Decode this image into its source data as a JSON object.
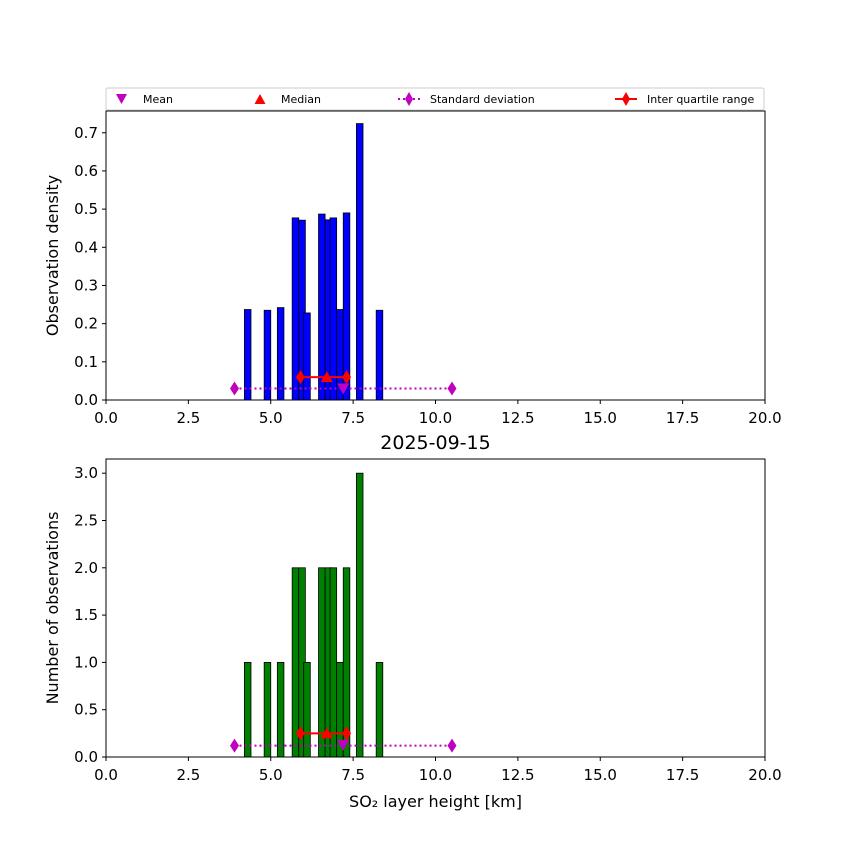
{
  "legend": {
    "mean": "Mean",
    "median": "Median",
    "std": "Standard deviation",
    "iqr": "Inter quartile range"
  },
  "chart_data": [
    {
      "type": "bar",
      "xlabel": "",
      "ylabel": "Observation density",
      "xlim": [
        0,
        20
      ],
      "ylim": [
        0,
        0.757
      ],
      "xticks": [
        "0.0",
        "2.5",
        "5.0",
        "7.5",
        "10.0",
        "12.5",
        "15.0",
        "17.5",
        "20.0"
      ],
      "yticks": [
        "0.0",
        "0.1",
        "0.2",
        "0.3",
        "0.4",
        "0.5",
        "0.6",
        "0.7"
      ],
      "bar_color": "#0000ff",
      "bars": [
        {
          "x": 4.3,
          "y": 0.237
        },
        {
          "x": 4.9,
          "y": 0.235
        },
        {
          "x": 5.3,
          "y": 0.242
        },
        {
          "x": 5.75,
          "y": 0.477
        },
        {
          "x": 5.95,
          "y": 0.471
        },
        {
          "x": 6.1,
          "y": 0.228
        },
        {
          "x": 6.55,
          "y": 0.487
        },
        {
          "x": 6.75,
          "y": 0.472
        },
        {
          "x": 6.9,
          "y": 0.477
        },
        {
          "x": 7.1,
          "y": 0.237
        },
        {
          "x": 7.3,
          "y": 0.49
        },
        {
          "x": 7.7,
          "y": 0.724
        },
        {
          "x": 8.3,
          "y": 0.235
        }
      ],
      "mean": {
        "x": 7.2,
        "y": 0.03
      },
      "median": {
        "x": 6.7,
        "y": 0.06
      },
      "std": {
        "x": [
          3.9,
          10.5
        ],
        "y": 0.03
      },
      "iqr": {
        "x": [
          5.9,
          7.3
        ],
        "y": 0.06
      }
    },
    {
      "type": "bar",
      "title": "2025-09-15",
      "xlabel": "SO₂ layer height [km]",
      "ylabel": "Number of observations",
      "xlim": [
        0,
        20
      ],
      "ylim": [
        0,
        3.15
      ],
      "xticks": [
        "0.0",
        "2.5",
        "5.0",
        "7.5",
        "10.0",
        "12.5",
        "15.0",
        "17.5",
        "20.0"
      ],
      "yticks": [
        "0.0",
        "0.5",
        "1.0",
        "1.5",
        "2.0",
        "2.5",
        "3.0"
      ],
      "bar_color": "#008000",
      "bars": [
        {
          "x": 4.3,
          "y": 1
        },
        {
          "x": 4.9,
          "y": 1
        },
        {
          "x": 5.3,
          "y": 1
        },
        {
          "x": 5.75,
          "y": 2
        },
        {
          "x": 5.95,
          "y": 2
        },
        {
          "x": 6.1,
          "y": 1
        },
        {
          "x": 6.55,
          "y": 2
        },
        {
          "x": 6.75,
          "y": 2
        },
        {
          "x": 6.9,
          "y": 2
        },
        {
          "x": 7.1,
          "y": 1
        },
        {
          "x": 7.3,
          "y": 2
        },
        {
          "x": 7.7,
          "y": 3
        },
        {
          "x": 8.3,
          "y": 1
        }
      ],
      "mean": {
        "x": 7.2,
        "y": 0.13
      },
      "median": {
        "x": 6.7,
        "y": 0.25
      },
      "std": {
        "x": [
          3.9,
          10.5
        ],
        "y": 0.12
      },
      "iqr": {
        "x": [
          5.9,
          7.3
        ],
        "y": 0.25
      }
    }
  ]
}
